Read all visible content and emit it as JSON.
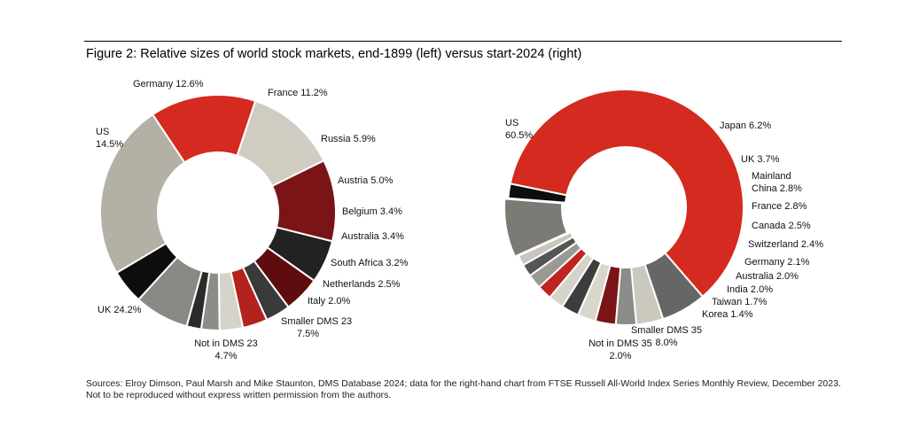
{
  "figure": {
    "title": "Figure 2: Relative sizes of world stock markets, end-1899 (left) versus start-2024 (right)",
    "source": "Sources: Elroy Dimson, Paul Marsh and Mike Staunton, DMS Database 2024; data for the right-hand chart from FTSE Russell All-World Index Series Monthly Review, December 2023. Not to be reproduced without express written permission from the authors."
  },
  "chart_data": [
    {
      "type": "pie",
      "variant": "donut",
      "title": "",
      "slices": [
        {
          "name": "Germany",
          "value": 12.6,
          "label": [
            "Germany 12.6%"
          ],
          "color": "#cfccc2"
        },
        {
          "name": "France",
          "value": 11.2,
          "label": [
            "France 11.2%"
          ],
          "color": "#7a1416"
        },
        {
          "name": "Russia",
          "value": 5.9,
          "label": [
            "Russia 5.9%"
          ],
          "color": "#222222"
        },
        {
          "name": "Austria",
          "value": 5.0,
          "label": [
            "Austria 5.0%"
          ],
          "color": "#5e0c0d"
        },
        {
          "name": "Belgium",
          "value": 3.4,
          "label": [
            "Belgium 3.4%"
          ],
          "color": "#3a3a3a"
        },
        {
          "name": "Australia",
          "value": 3.4,
          "label": [
            "Australia 3.4%"
          ],
          "color": "#b3231e"
        },
        {
          "name": "South Africa",
          "value": 3.2,
          "label": [
            "South Africa 3.2%"
          ],
          "color": "#d6d3ca"
        },
        {
          "name": "Netherlands",
          "value": 2.5,
          "label": [
            "Netherlands 2.5%"
          ],
          "color": "#8c8c88"
        },
        {
          "name": "Italy",
          "value": 2.0,
          "label": [
            "Italy 2.0%"
          ],
          "color": "#2b2b2b"
        },
        {
          "name": "Smaller DMS 23",
          "value": 7.5,
          "label": [
            "Smaller DMS 23",
            "7.5%"
          ],
          "color": "#8a8984"
        },
        {
          "name": "Not in DMS 23",
          "value": 4.7,
          "label": [
            "Not in DMS 23",
            "4.7%"
          ],
          "color": "#0d0d0d"
        },
        {
          "name": "UK",
          "value": 24.2,
          "label": [
            "UK 24.2%"
          ],
          "color": "#b3b0a5"
        },
        {
          "name": "US",
          "value": 14.5,
          "label": [
            "US",
            "14.5%"
          ],
          "color": "#d42a1f"
        }
      ]
    },
    {
      "type": "pie",
      "variant": "donut",
      "title": "",
      "slices": [
        {
          "name": "Japan",
          "value": 6.2,
          "label": [
            "Japan 6.2%"
          ],
          "color": "#666666"
        },
        {
          "name": "UK",
          "value": 3.7,
          "label": [
            "UK 3.7%"
          ],
          "color": "#cbc8bd"
        },
        {
          "name": "Mainland China",
          "value": 2.8,
          "label": [
            "Mainland",
            "China 2.8%"
          ],
          "color": "#8c8c88"
        },
        {
          "name": "France",
          "value": 2.8,
          "label": [
            "France 2.8%"
          ],
          "color": "#7a1416"
        },
        {
          "name": "Canada",
          "value": 2.5,
          "label": [
            "Canada 2.5%"
          ],
          "color": "#d9d6cc"
        },
        {
          "name": "Switzerland",
          "value": 2.4,
          "label": [
            "Switzerland 2.4%"
          ],
          "color": "#3d3d3d"
        },
        {
          "name": "Germany",
          "value": 2.1,
          "label": [
            "Germany 2.1%"
          ],
          "color": "#d6d3c8"
        },
        {
          "name": "Australia",
          "value": 2.0,
          "label": [
            "Australia 2.0%"
          ],
          "color": "#c0241e"
        },
        {
          "name": "India",
          "value": 2.0,
          "label": [
            "India 2.0%"
          ],
          "color": "#9a9994"
        },
        {
          "name": "Taiwan",
          "value": 1.7,
          "label": [
            "Taiwan 1.7%"
          ],
          "color": "#555555"
        },
        {
          "name": "Korea",
          "value": 1.4,
          "label": [
            "Korea 1.4%"
          ],
          "color": "#c9c6bb"
        },
        {
          "name": "Smaller DMS 35",
          "value": 8.0,
          "label": [
            "Smaller DMS 35",
            "8.0%"
          ],
          "color": "#7c7a75"
        },
        {
          "name": "Not in DMS 35",
          "value": 2.0,
          "label": [
            "Not in DMS 35",
            "2.0%"
          ],
          "color": "#0d0d0d"
        },
        {
          "name": "US",
          "value": 60.5,
          "label": [
            "US",
            "60.5%"
          ],
          "color": "#d42a1f"
        }
      ]
    }
  ]
}
